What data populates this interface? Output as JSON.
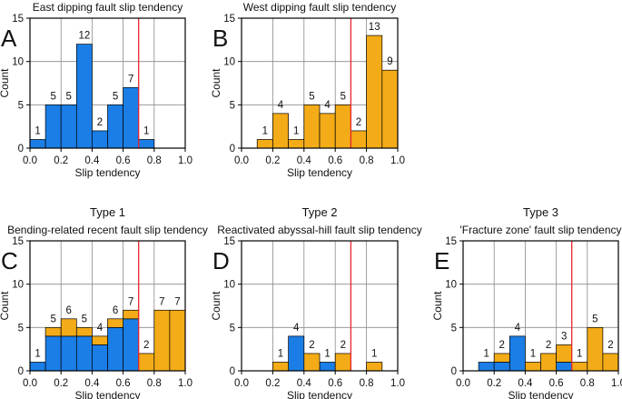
{
  "colors": {
    "east": "#1a7ee6",
    "west": "#f3ab17",
    "threshold": "#e8252c"
  },
  "chart_data": [
    {
      "id": "A",
      "type": "bar",
      "panel_label": "A",
      "title": "East dipping fault slip tendency",
      "type_title": "",
      "xlabel": "Slip tendency",
      "ylabel": "Count",
      "xlim": [
        0,
        1
      ],
      "ylim": [
        0,
        15
      ],
      "xticks": [
        "0.0",
        "0.2",
        "0.4",
        "0.6",
        "0.8",
        "1.0"
      ],
      "yticks": [
        "0",
        "5",
        "10",
        "15"
      ],
      "threshold": 0.7,
      "bin_width": 0.1,
      "bins": [
        0.0,
        0.1,
        0.2,
        0.3,
        0.4,
        0.5,
        0.6,
        0.7
      ],
      "series": [
        {
          "name": "East dipping",
          "color": "east",
          "values": [
            1,
            5,
            5,
            12,
            2,
            5,
            7,
            1
          ]
        }
      ],
      "bin_labels": [
        "1",
        "5",
        "5",
        "12",
        "2",
        "5",
        "7",
        "1"
      ]
    },
    {
      "id": "B",
      "type": "bar",
      "panel_label": "B",
      "title": "West dipping fault slip tendency",
      "type_title": "",
      "xlabel": "Slip tendency",
      "ylabel": "Count",
      "xlim": [
        0,
        1
      ],
      "ylim": [
        0,
        15
      ],
      "xticks": [
        "0.0",
        "0.2",
        "0.4",
        "0.6",
        "0.8",
        "1.0"
      ],
      "yticks": [
        "0",
        "5",
        "10",
        "15"
      ],
      "threshold": 0.7,
      "bin_width": 0.1,
      "bins": [
        0.1,
        0.2,
        0.3,
        0.4,
        0.5,
        0.6,
        0.7,
        0.8,
        0.9
      ],
      "series": [
        {
          "name": "West dipping",
          "color": "west",
          "values": [
            1,
            4,
            1,
            5,
            4,
            5,
            2,
            13,
            9
          ]
        }
      ],
      "bin_labels": [
        "1",
        "4",
        "1",
        "5",
        "4",
        "5",
        "2",
        "13",
        "9"
      ]
    },
    {
      "id": "C",
      "type": "bar",
      "panel_label": "C",
      "title": "Bending-related recent fault slip tendency",
      "type_title": "Type 1",
      "xlabel": "Slip tendency",
      "ylabel": "Count",
      "xlim": [
        0,
        1
      ],
      "ylim": [
        0,
        15
      ],
      "xticks": [
        "0.0",
        "0.2",
        "0.4",
        "0.6",
        "0.8",
        "1.0"
      ],
      "yticks": [
        "0",
        "5",
        "10",
        "15"
      ],
      "threshold": 0.7,
      "bin_width": 0.1,
      "bins": [
        0.0,
        0.1,
        0.2,
        0.3,
        0.4,
        0.5,
        0.6,
        0.7,
        0.8,
        0.9
      ],
      "series": [
        {
          "name": "East dipping",
          "color": "east",
          "values": [
            1,
            4,
            4,
            4,
            3,
            5,
            6,
            0,
            0,
            0
          ]
        },
        {
          "name": "West dipping",
          "color": "west",
          "values": [
            0,
            1,
            2,
            1,
            1,
            1,
            1,
            2,
            7,
            7
          ]
        }
      ],
      "bin_labels": [
        "1",
        "5",
        "6",
        "5",
        "4",
        "6",
        "7",
        "2",
        "7",
        "7"
      ]
    },
    {
      "id": "D",
      "type": "bar",
      "panel_label": "D",
      "title": "Reactivated abyssal-hill fault slip tendency",
      "type_title": "Type 2",
      "xlabel": "Slip tendency",
      "ylabel": "Count",
      "xlim": [
        0,
        1
      ],
      "ylim": [
        0,
        15
      ],
      "xticks": [
        "0.0",
        "0.2",
        "0.4",
        "0.6",
        "0.8",
        "1.0"
      ],
      "yticks": [
        "0",
        "5",
        "10",
        "15"
      ],
      "threshold": 0.7,
      "bin_width": 0.1,
      "bins": [
        0.2,
        0.3,
        0.4,
        0.5,
        0.6,
        0.8
      ],
      "series": [
        {
          "name": "East dipping",
          "color": "east",
          "values": [
            0,
            4,
            0,
            1,
            0,
            0
          ]
        },
        {
          "name": "West dipping",
          "color": "west",
          "values": [
            1,
            0,
            2,
            0,
            2,
            1
          ]
        }
      ],
      "bin_labels": [
        "1",
        "4",
        "2",
        "1",
        "2",
        "1"
      ]
    },
    {
      "id": "E",
      "type": "bar",
      "panel_label": "E",
      "title": "'Fracture zone' fault slip tendency",
      "type_title": "Type 3",
      "xlabel": "Slip tendency",
      "ylabel": "Count",
      "xlim": [
        0,
        1
      ],
      "ylim": [
        0,
        15
      ],
      "xticks": [
        "0.0",
        "0.2",
        "0.4",
        "0.6",
        "0.8",
        "1.0"
      ],
      "yticks": [
        "0",
        "5",
        "10",
        "15"
      ],
      "threshold": 0.7,
      "bin_width": 0.1,
      "bins": [
        0.1,
        0.2,
        0.3,
        0.4,
        0.5,
        0.6,
        0.7,
        0.8,
        0.9
      ],
      "series": [
        {
          "name": "East dipping",
          "color": "east",
          "values": [
            1,
            1,
            4,
            0,
            0,
            1,
            0,
            0,
            0
          ]
        },
        {
          "name": "West dipping",
          "color": "west",
          "values": [
            0,
            1,
            0,
            1,
            2,
            2,
            1,
            5,
            2
          ]
        }
      ],
      "bin_labels": [
        "1",
        "2",
        "4",
        "1",
        "2",
        "3",
        "1",
        "5",
        "2"
      ]
    }
  ]
}
